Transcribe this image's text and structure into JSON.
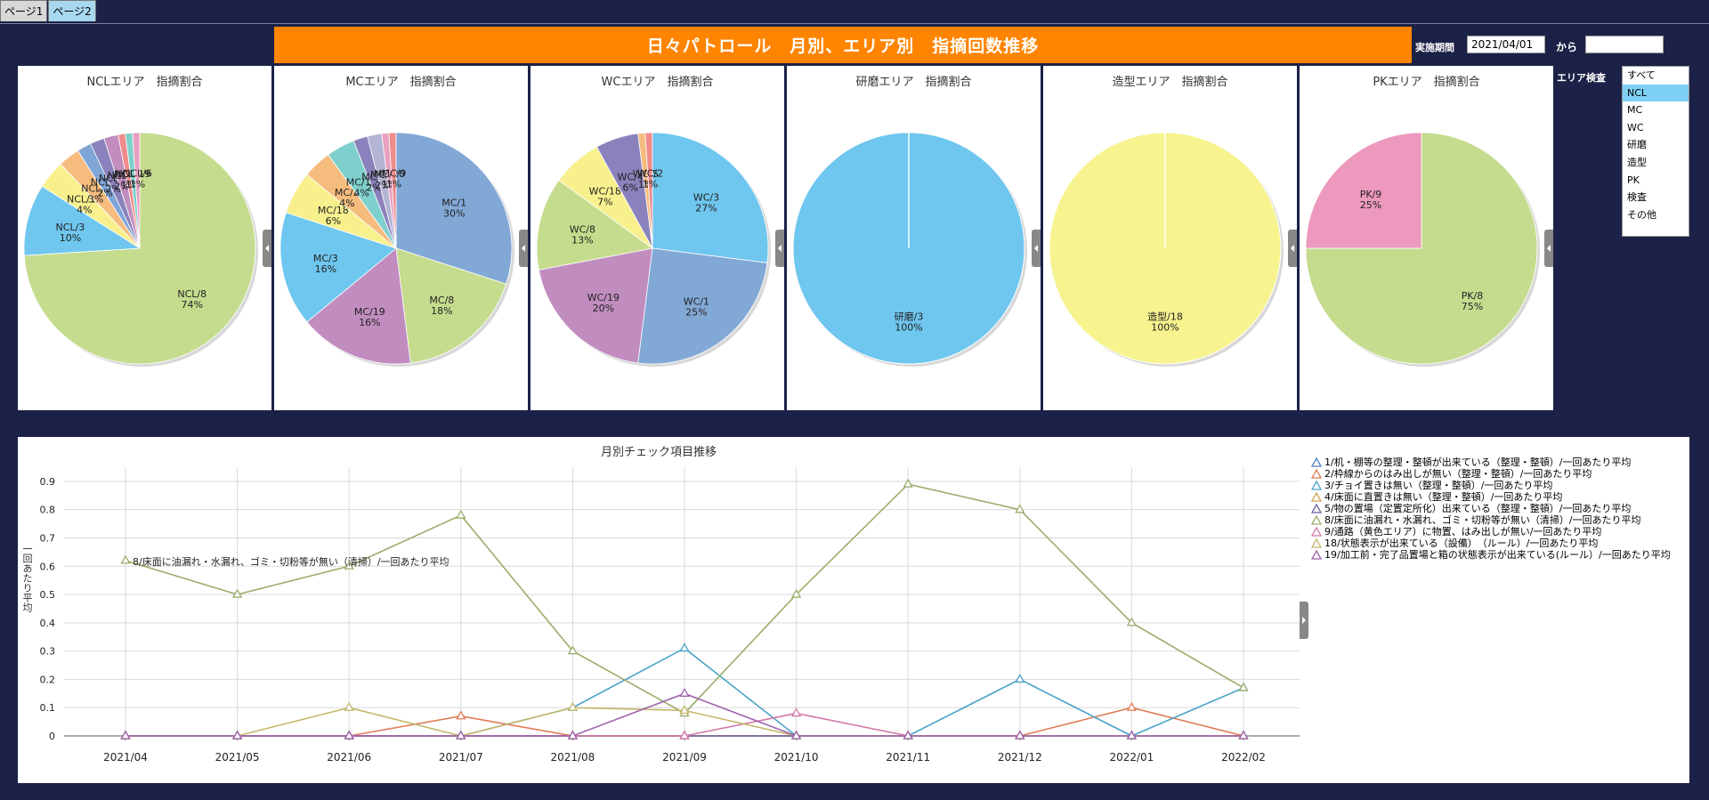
{
  "tabs": [
    {
      "label": "ページ1",
      "active": false
    },
    {
      "label": "ページ2",
      "active": true
    }
  ],
  "banner_title": "日々パトロール　月別、エリア別　指摘回数推移",
  "period": {
    "label": "実施期間",
    "start": "2021/04/01",
    "to_label": "から",
    "end": ""
  },
  "area_filter": {
    "label": "エリア検査",
    "options": [
      "すべて",
      "NCL",
      "MC",
      "WC",
      "研磨",
      "造型",
      "PK",
      "検査",
      "その他"
    ],
    "selected": "NCL"
  },
  "colors": {
    "banner": "#ff8400",
    "background": "#1c2147",
    "selected_item": "#7fd0f5"
  },
  "pies": [
    {
      "title": "NCLエリア　指摘割合",
      "slices": [
        {
          "label": "NCL/8",
          "pct": 74,
          "color": "#c5dc8e"
        },
        {
          "label": "NCL/3",
          "pct": 10,
          "color": "#6fc6ee"
        },
        {
          "label": "NCL/18",
          "pct": 4,
          "color": "#f7f08d"
        },
        {
          "label": "NCL/2",
          "pct": 3,
          "color": "#f5bc7e"
        },
        {
          "label": "NCL/1",
          "pct": 2,
          "color": "#7fa6d6"
        },
        {
          "label": "NCL/4",
          "pct": 2,
          "color": "#8a82bc"
        },
        {
          "label": "NCL/5",
          "pct": 2,
          "color": "#c18dbf"
        },
        {
          "label": "NCL/9",
          "pct": 1,
          "color": "#f08b8b"
        },
        {
          "label": "NCL/19",
          "pct": 1,
          "color": "#7fd0cc"
        },
        {
          "label": "NCL/6",
          "pct": 1,
          "color": "#e8a0c0"
        }
      ]
    },
    {
      "title": "MCエリア　指摘割合",
      "slices": [
        {
          "label": "MC/1",
          "pct": 30,
          "color": "#82a8d6"
        },
        {
          "label": "MC/8",
          "pct": 18,
          "color": "#c5dc8e"
        },
        {
          "label": "MC/19",
          "pct": 16,
          "color": "#c18dbf"
        },
        {
          "label": "MC/3",
          "pct": 16,
          "color": "#6fc6ee"
        },
        {
          "label": "MC/18",
          "pct": 6,
          "color": "#f7f08d"
        },
        {
          "label": "MC/2",
          "pct": 4,
          "color": "#f5bc7e"
        },
        {
          "label": "MC/10",
          "pct": 4,
          "color": "#7fd0cc"
        },
        {
          "label": "MC/6",
          "pct": 2,
          "color": "#8a82bc"
        },
        {
          "label": "MC/7",
          "pct": 2,
          "color": "#b4b4d4"
        },
        {
          "label": "MC/20",
          "pct": 1,
          "color": "#e8a0c0"
        },
        {
          "label": "MC/9",
          "pct": 1,
          "color": "#f08b8b"
        }
      ]
    },
    {
      "title": "WCエリア　指摘割合",
      "slices": [
        {
          "label": "WC/3",
          "pct": 27,
          "color": "#6fc6ee"
        },
        {
          "label": "WC/1",
          "pct": 25,
          "color": "#82a8d6"
        },
        {
          "label": "WC/19",
          "pct": 20,
          "color": "#c18dbf"
        },
        {
          "label": "WC/8",
          "pct": 13,
          "color": "#c5dc8e"
        },
        {
          "label": "WC/18",
          "pct": 7,
          "color": "#f7f08d"
        },
        {
          "label": "WC/4",
          "pct": 6,
          "color": "#8a82bc"
        },
        {
          "label": "WC/5",
          "pct": 1,
          "color": "#f5bc7e"
        },
        {
          "label": "WC/2",
          "pct": 1,
          "color": "#f08b8b"
        }
      ]
    },
    {
      "title": "研磨エリア　指摘割合",
      "slices": [
        {
          "label": "研磨/3",
          "pct": 100,
          "color": "#6fc6ee"
        }
      ]
    },
    {
      "title": "造型エリア　指摘割合",
      "slices": [
        {
          "label": "造型/18",
          "pct": 100,
          "color": "#f7f38f"
        }
      ]
    },
    {
      "title": "PKエリア　指摘割合",
      "slices": [
        {
          "label": "PK/8",
          "pct": 75,
          "color": "#c5dc8e"
        },
        {
          "label": "PK/9",
          "pct": 25,
          "color": "#ec99bd"
        }
      ]
    }
  ],
  "chart_data": {
    "type": "line",
    "title": "月別チェック項目推移",
    "ylabel": "一回あたり平均",
    "ylim": [
      0,
      0.95
    ],
    "yticks": [
      0,
      0.1,
      0.2,
      0.3,
      0.4,
      0.5,
      0.6,
      0.7,
      0.8,
      0.9
    ],
    "x": [
      "2021/04",
      "2021/05",
      "2021/06",
      "2021/07",
      "2021/08",
      "2021/09",
      "2021/10",
      "2021/11",
      "2021/12",
      "2022/01",
      "2022/02"
    ],
    "series": [
      {
        "name": "1/机・棚等の整理・整頓が出来ている（整理・整頓）/一回あたり平均",
        "color": "#4f81bd",
        "values": [
          0,
          0,
          0,
          0,
          0,
          0,
          0,
          0,
          0,
          0,
          0
        ]
      },
      {
        "name": "2/枠線からのはみ出しが無い（整理・整頓）/一回あたり平均",
        "color": "#e07b57",
        "values": [
          0,
          0,
          0,
          0.07,
          0,
          0,
          0,
          0,
          0,
          0.1,
          0
        ]
      },
      {
        "name": "3/チョイ置きは無い（整理・整頓）/一回あたり平均",
        "color": "#4aa3c8",
        "values": [
          0,
          0,
          0,
          0,
          0.1,
          0.31,
          0,
          0,
          0.2,
          0,
          0.17
        ]
      },
      {
        "name": "4/床面に直置きは無い（整理・整頓）/一回あたり平均",
        "color": "#d1a24a",
        "values": [
          0,
          0,
          0,
          0,
          0,
          0,
          0,
          0,
          0,
          0,
          0
        ]
      },
      {
        "name": "5/物の置場（定置定所化）出来ている（整理・整頓）/一回あたり平均",
        "color": "#6e5fa8",
        "values": [
          0,
          0,
          0,
          0,
          0,
          0,
          0,
          0,
          0,
          0,
          0
        ]
      },
      {
        "name": "8/床面に油漏れ・水漏れ、ゴミ・切粉等が無い（清掃）/一回あたり平均",
        "color": "#9bad6b",
        "values": [
          0.62,
          0.5,
          0.6,
          0.78,
          0.3,
          0.08,
          0.5,
          0.89,
          0.8,
          0.4,
          0.17
        ]
      },
      {
        "name": "9/通路（黄色エリア）に物置、はみ出しが無い/一回あたり平均",
        "color": "#d479a8",
        "values": [
          0,
          0,
          0,
          0,
          0,
          0,
          0.08,
          0,
          0,
          0,
          0
        ]
      },
      {
        "name": "18/状態表示が出来ている（設備）　（ルール）/一回あたり平均",
        "color": "#c4b76a",
        "values": [
          0,
          0,
          0.1,
          0,
          0.1,
          0.09,
          0,
          0,
          0,
          0,
          0
        ]
      },
      {
        "name": "19/加工前・完了品置場と箱の状態表示が出来ている(ルール）/一回あたり平均",
        "color": "#9f64ad",
        "values": [
          0,
          0,
          0,
          0,
          0,
          0.15,
          0,
          0,
          0,
          0,
          0
        ]
      }
    ],
    "annotation": "8/床面に油漏れ・水漏れ、ゴミ・切粉等が無い（清掃）/一回あたり平均",
    "grid": true,
    "legend": "right"
  }
}
